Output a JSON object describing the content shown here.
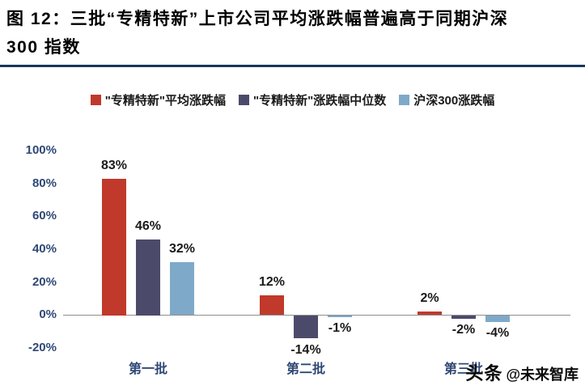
{
  "title": {
    "line1": "图 12：三批“专精特新”上市公司平均涨跌幅普遍高于同期沪深",
    "line2": "300 指数"
  },
  "chart_data": {
    "type": "bar",
    "categories": [
      "第一批",
      "第二批",
      "第三批"
    ],
    "series": [
      {
        "name": "\"专精特新\"平均涨跌幅",
        "color": "#C0392B",
        "values": [
          83,
          12,
          2
        ]
      },
      {
        "name": "\"专精特新\"涨跌幅中位数",
        "color": "#4C4A6B",
        "values": [
          46,
          -14,
          -2
        ]
      },
      {
        "name": "沪深300涨跌幅",
        "color": "#7FA9C9",
        "values": [
          32,
          -1,
          -4
        ]
      }
    ],
    "unit": "%",
    "ylim": [
      -20,
      100
    ],
    "yticks": [
      100,
      80,
      60,
      40,
      20,
      0,
      -20
    ],
    "grid": false,
    "legend_position": "top",
    "data_labels": true
  },
  "colors": {
    "title_rule": "#17375E",
    "axis_label": "#2F4875",
    "baseline": "#8F8F8F",
    "data_label": "#1A1A1A"
  },
  "watermark": {
    "brand": "头条",
    "handle": "@未来智库"
  }
}
